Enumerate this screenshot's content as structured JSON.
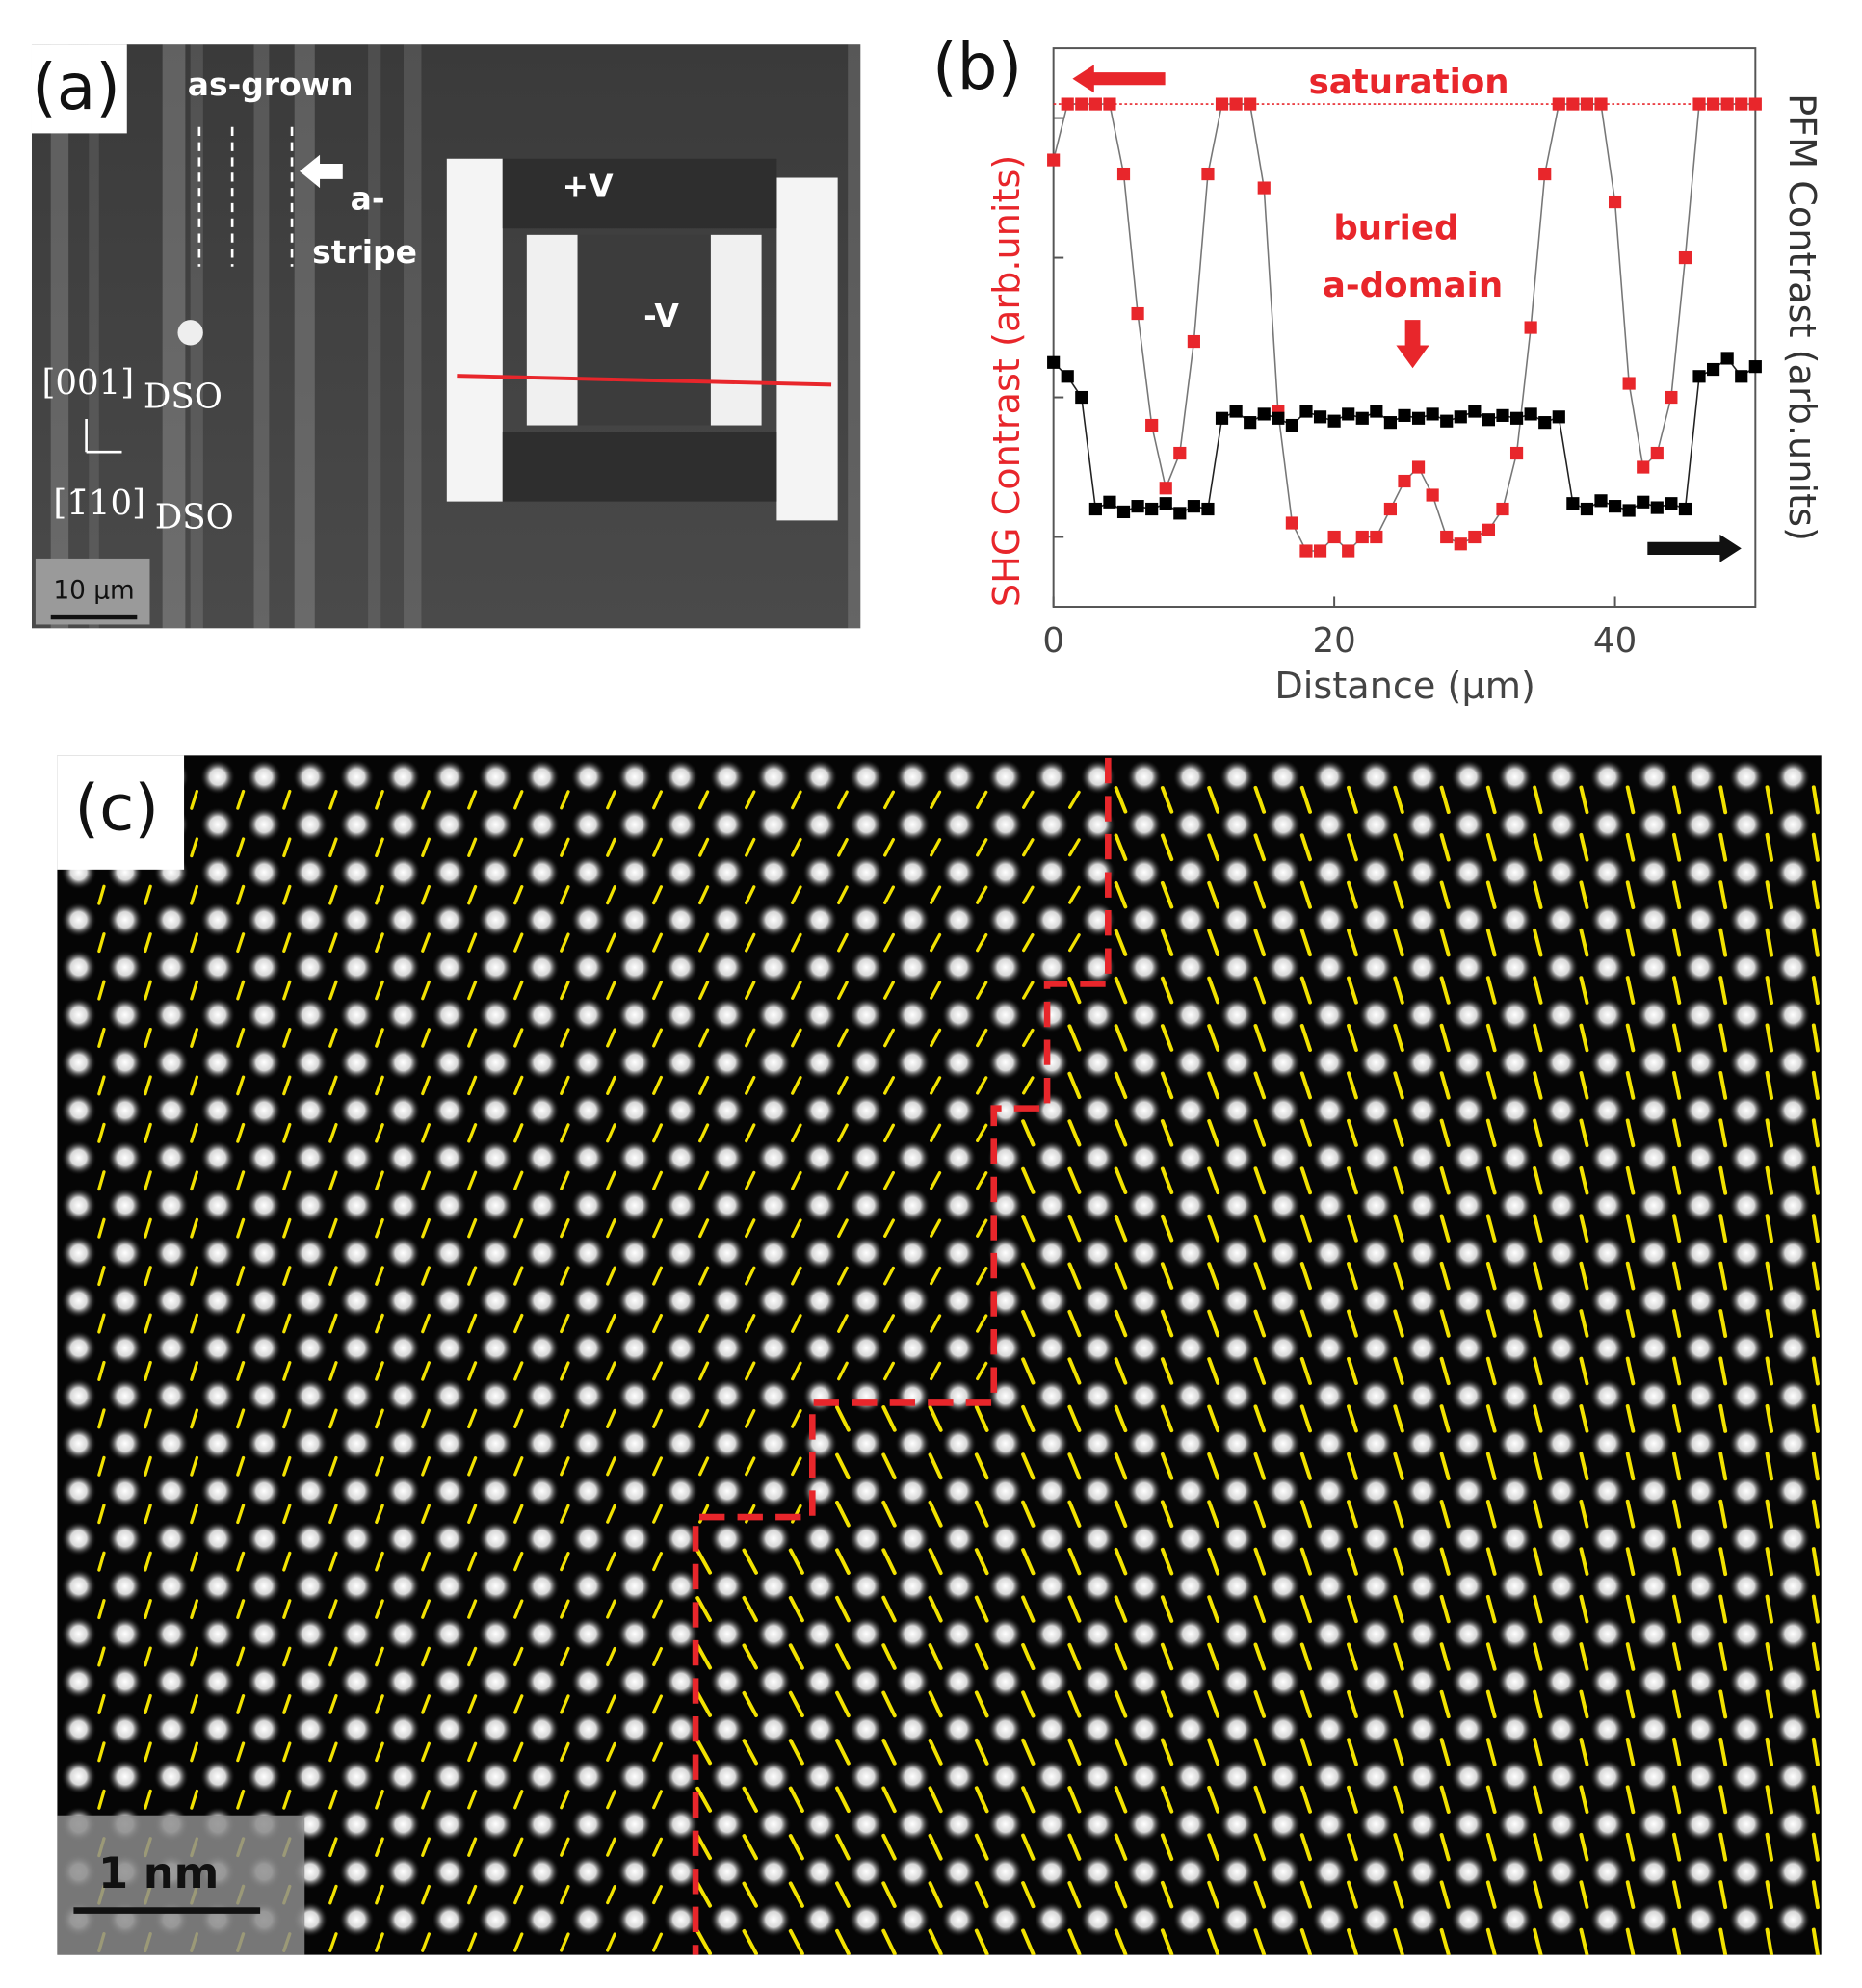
{
  "panel_a": {
    "label": "(a)",
    "as_grown": "as-grown",
    "a_stripe_1": "a-",
    "a_stripe_2": "stripe",
    "plus_v": "+V",
    "minus_v": "-V",
    "axis_1": "[001]",
    "axis_1_sub": "DSO",
    "axis_2": "[1̄10]",
    "axis_2_sub": "DSO",
    "scale_bar": "10 μm"
  },
  "chart_data": {
    "type": "scatter",
    "label": "(b)",
    "xlabel": "Distance (μm)",
    "ylabel": "SHG Contrast (arb.units)",
    "y2label": "PFM Contrast (arb.units)",
    "annotation_saturation": "saturation",
    "annotation_buried_1": "buried",
    "annotation_buried_2": "a-domain",
    "saturation_level": 3.1,
    "xlim": [
      0,
      50
    ],
    "xticks": [
      0,
      20,
      40
    ],
    "ylim": [
      -0.5,
      3.5
    ],
    "yticks": [
      0,
      1,
      2,
      3
    ],
    "x": [
      0,
      1,
      2,
      3,
      4,
      5,
      6,
      7,
      8,
      9,
      10,
      11,
      12,
      13,
      14,
      15,
      16,
      17,
      18,
      19,
      20,
      21,
      22,
      23,
      24,
      25,
      26,
      27,
      28,
      29,
      30,
      31,
      32,
      33,
      34,
      35,
      36,
      37,
      38,
      39,
      40,
      41,
      42,
      43,
      44,
      45,
      46,
      47,
      48,
      49,
      50
    ],
    "series": [
      {
        "color": "#e8262b",
        "values": [
          2.7,
          3.1,
          3.1,
          3.1,
          3.1,
          2.6,
          1.6,
          0.8,
          0.35,
          0.6,
          1.4,
          2.6,
          3.1,
          3.1,
          3.1,
          2.5,
          0.9,
          0.1,
          -0.1,
          -0.1,
          0.0,
          -0.1,
          0.0,
          0.0,
          0.2,
          0.4,
          0.5,
          0.3,
          0.0,
          -0.05,
          0.0,
          0.05,
          0.2,
          0.6,
          1.5,
          2.6,
          3.1,
          3.1,
          3.1,
          3.1,
          2.4,
          1.1,
          0.5,
          0.6,
          1.0,
          2.0,
          3.1,
          3.1,
          3.1,
          3.1,
          3.1
        ]
      },
      {
        "color": "#000000",
        "values": [
          1.25,
          1.15,
          1.0,
          0.2,
          0.25,
          0.18,
          0.22,
          0.2,
          0.24,
          0.17,
          0.22,
          0.2,
          0.85,
          0.9,
          0.82,
          0.88,
          0.85,
          0.8,
          0.9,
          0.86,
          0.83,
          0.88,
          0.85,
          0.9,
          0.82,
          0.87,
          0.85,
          0.88,
          0.83,
          0.86,
          0.9,
          0.84,
          0.87,
          0.85,
          0.88,
          0.82,
          0.86,
          0.24,
          0.2,
          0.26,
          0.22,
          0.19,
          0.25,
          0.21,
          0.24,
          0.2,
          1.15,
          1.2,
          1.28,
          1.15,
          1.22
        ]
      }
    ]
  },
  "panel_c": {
    "label": "(c)",
    "scale_bar": "1 nm"
  }
}
